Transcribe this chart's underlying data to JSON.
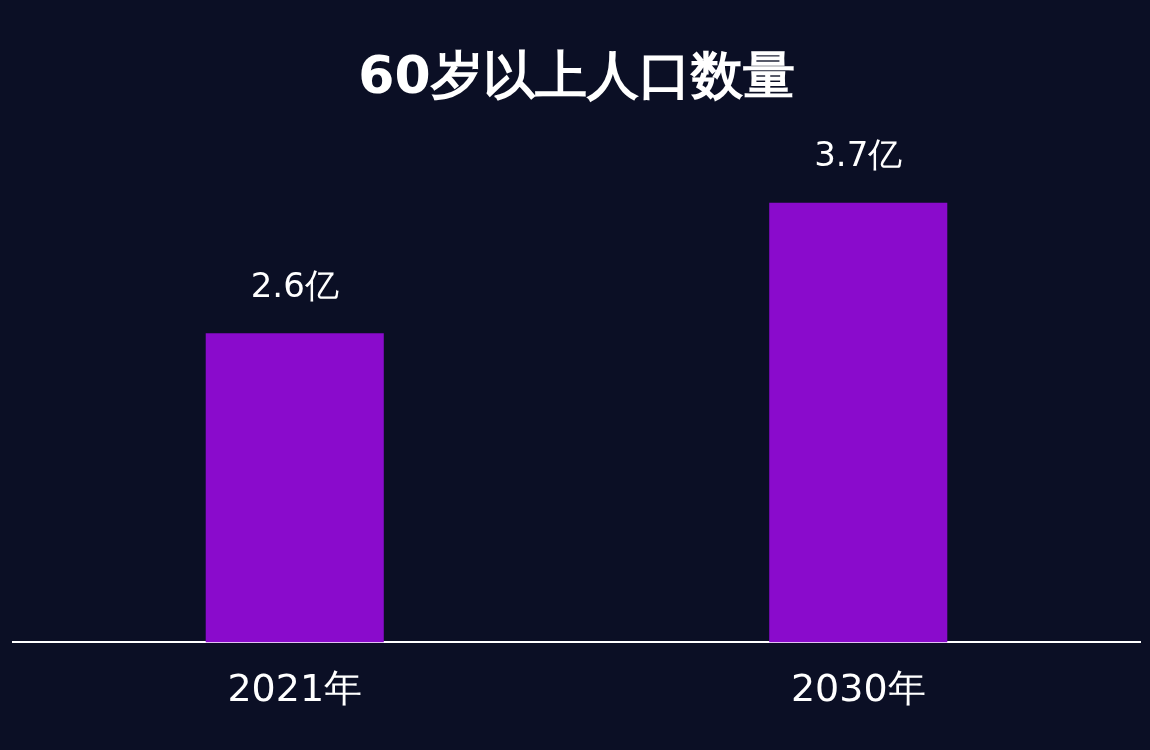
{
  "chart_data": {
    "type": "bar",
    "title": "60岁以上人口数量",
    "categories": [
      "2021年",
      "2030年"
    ],
    "values": [
      2.6,
      3.7
    ],
    "value_labels": [
      "2.6亿",
      "3.7亿"
    ],
    "color": "#8a0bcc",
    "legend": false
  }
}
